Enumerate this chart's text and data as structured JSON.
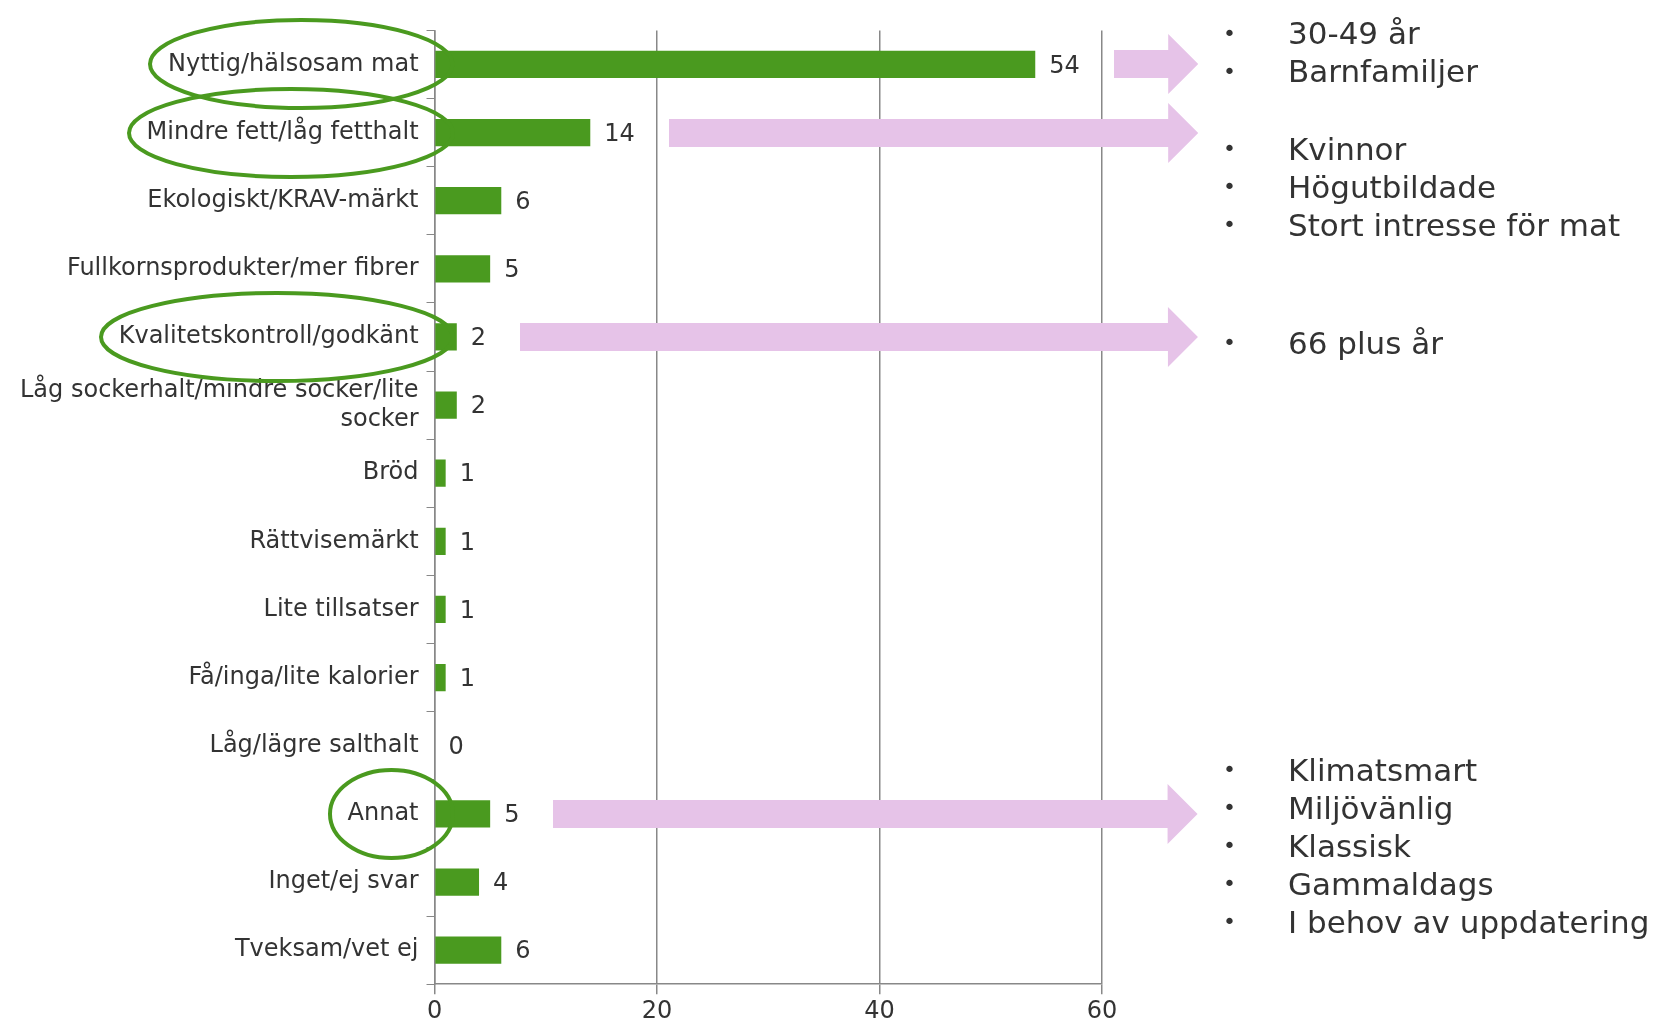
{
  "chart_data": {
    "type": "bar",
    "orientation": "horizontal",
    "categories": [
      "Nyttig/hälsosam mat",
      "Mindre fett/låg fetthalt",
      "Ekologiskt/KRAV-märkt",
      "Fullkornsprodukter/mer fibrer",
      "Kvalitetskontroll/godkänt",
      "Låg sockerhalt/mindre socker/lite socker",
      "Bröd",
      "Rättvisemärkt",
      "Lite tillsatser",
      "Få/inga/lite kalorier",
      "Låg/lägre salthalt",
      "Annat",
      "Inget/ej svar",
      "Tveksam/vet ej"
    ],
    "values": [
      54,
      14,
      6,
      5,
      2,
      2,
      1,
      1,
      1,
      1,
      0,
      5,
      4,
      6
    ],
    "color": "#4a9a1f",
    "xlim": [
      0,
      60
    ],
    "xticks": [
      0,
      20,
      40,
      60
    ],
    "grid": "x",
    "data_labels": true,
    "legend": false,
    "annotations": [
      "• 30-49 år\n• Barnfamiljer",
      "• Kvinnor\n• Högutbildade\n• Stort intresse för mat",
      "• 66 plus år",
      "• Klimatsmart\n• Miljövänlig\n• Klassisk\n• Gammaldags\n• I behov av uppdatering"
    ]
  }
}
